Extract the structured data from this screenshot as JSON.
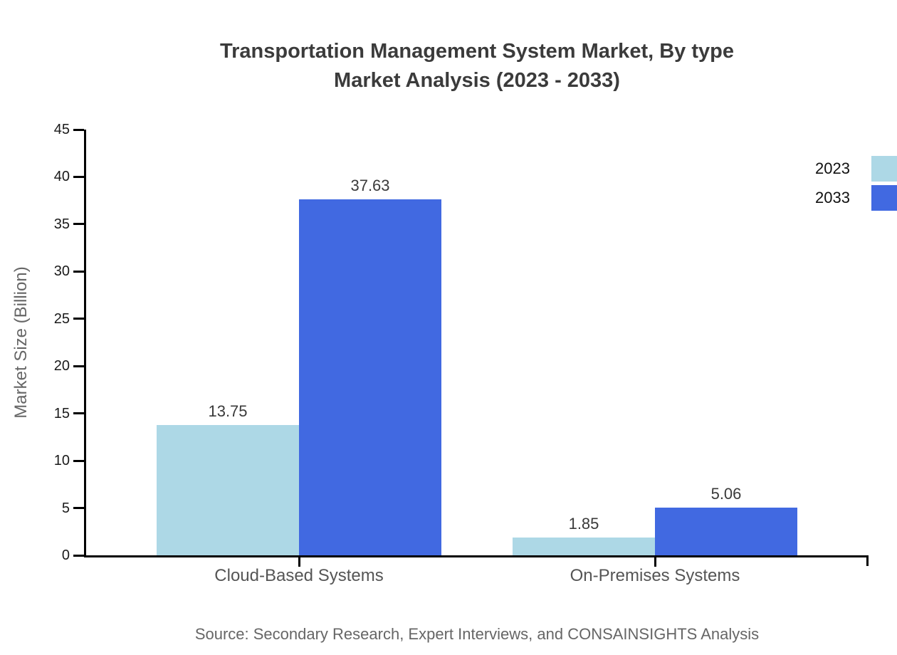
{
  "title": {
    "line1": "Transportation Management System Market, By type",
    "line2": "Market Analysis (2023 - 2033)"
  },
  "source": "Source: Secondary Research, Expert Interviews, and CONSAINSIGHTS Analysis",
  "chart_data": {
    "type": "bar",
    "title": "Transportation Management System Market, By type Market Analysis (2023 - 2033)",
    "categories": [
      "Cloud-Based Systems",
      "On-Premises Systems"
    ],
    "series": [
      {
        "name": "2023",
        "color": "#add8e6",
        "values": [
          13.75,
          1.85
        ]
      },
      {
        "name": "2033",
        "color": "#4169e1",
        "values": [
          37.63,
          5.06
        ]
      }
    ],
    "xlabel": "",
    "ylabel": "Market Size (Billion)",
    "ylim": [
      0,
      45
    ],
    "ytick_step": 5,
    "yticks": [
      0,
      5,
      10,
      15,
      20,
      25,
      30,
      35,
      40,
      45
    ],
    "grid": false,
    "legend_position": "right",
    "colors": {
      "axis": "#000000",
      "title_text": "#3b3b3b",
      "tick_text": "#1a1a1a",
      "category_text": "#555555",
      "value_text": "#3a3a3a",
      "muted_text": "#666666"
    }
  }
}
